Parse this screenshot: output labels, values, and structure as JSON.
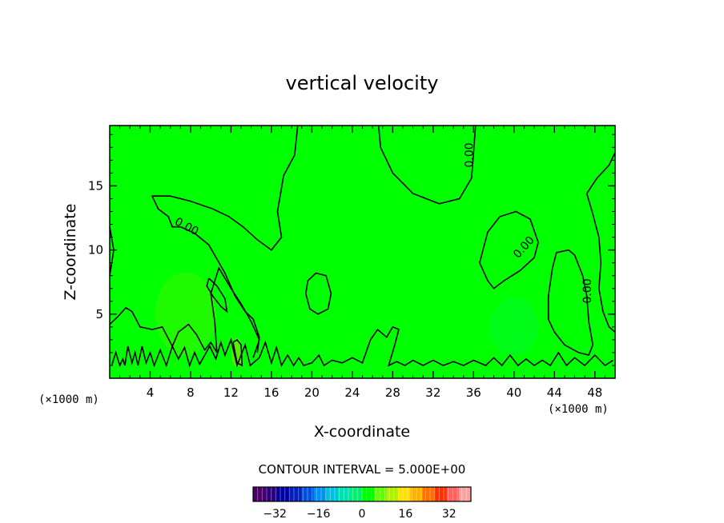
{
  "chart_data": {
    "type": "contour",
    "title": "vertical velocity",
    "xlabel": "X-coordinate",
    "ylabel": "Z-coordinate",
    "x_unit": "(×1000 m)",
    "y_unit": "(×1000 m)",
    "xlim": [
      0,
      50
    ],
    "ylim": [
      0,
      19.7
    ],
    "xticks": [
      4,
      8,
      12,
      16,
      20,
      24,
      28,
      32,
      36,
      40,
      44,
      48
    ],
    "yticks": [
      5,
      10,
      15
    ],
    "contour_interval_text": "CONTOUR INTERVAL = 5.000E+00",
    "contour_label": "0.00",
    "colorbar": {
      "min": -40,
      "max": 40,
      "ticks": [
        -32,
        -16,
        0,
        16,
        32
      ],
      "colors": [
        "#4b0066",
        "#2a0080",
        "#0000a0",
        "#0020c0",
        "#0050e0",
        "#0090f0",
        "#00c0e0",
        "#00e0b0",
        "#00f070",
        "#00ff00",
        "#60ff00",
        "#b0f000",
        "#ffe000",
        "#ffb000",
        "#ff7000",
        "#ff3000",
        "#ff6060",
        "#ffa0a0"
      ]
    },
    "field_color": "#00ff00",
    "contours": [
      [
        [
          0.2,
          1.0
        ],
        [
          0.6,
          2.0
        ],
        [
          1.0,
          1.0
        ],
        [
          1.3,
          1.5
        ],
        [
          1.5,
          1.0
        ],
        [
          1.8,
          2.5
        ],
        [
          2.2,
          1.2
        ],
        [
          2.5,
          2.0
        ],
        [
          2.8,
          1.0
        ],
        [
          3.2,
          2.5
        ],
        [
          3.6,
          1.2
        ],
        [
          4.0,
          2.0
        ],
        [
          4.4,
          1.0
        ],
        [
          5.0,
          2.2
        ],
        [
          5.6,
          1.0
        ],
        [
          6.2,
          2.5
        ],
        [
          6.8,
          1.5
        ],
        [
          7.4,
          2.4
        ],
        [
          7.9,
          1.0
        ],
        [
          8.4,
          2.0
        ],
        [
          8.9,
          1.1
        ],
        [
          9.4,
          1.8
        ],
        [
          9.9,
          2.5
        ],
        [
          10.5,
          1.5
        ],
        [
          11.0,
          2.8
        ],
        [
          11.4,
          1.8
        ],
        [
          12.0,
          3.0
        ],
        [
          12.6,
          1.0
        ],
        [
          13.4,
          2.6
        ],
        [
          13.9,
          1.0
        ],
        [
          14.8,
          1.6
        ],
        [
          15.4,
          2.8
        ],
        [
          16.0,
          1.2
        ],
        [
          16.5,
          2.4
        ],
        [
          17.0,
          1.0
        ],
        [
          17.6,
          1.8
        ],
        [
          18.2,
          1.0
        ],
        [
          18.7,
          1.6
        ],
        [
          19.2,
          1.0
        ],
        [
          20.0,
          1.2
        ],
        [
          20.7,
          1.8
        ],
        [
          21.2,
          1.0
        ],
        [
          22.0,
          1.4
        ],
        [
          23.0,
          1.2
        ],
        [
          24.0,
          1.6
        ],
        [
          25.0,
          1.2
        ],
        [
          25.8,
          3.0
        ],
        [
          26.5,
          3.8
        ],
        [
          27.4,
          3.2
        ],
        [
          28.0,
          4.0
        ],
        [
          28.6,
          3.8
        ],
        [
          28.2,
          2.6
        ],
        [
          27.6,
          1.0
        ],
        [
          28.4,
          1.3
        ],
        [
          29.2,
          1.0
        ],
        [
          30.0,
          1.4
        ],
        [
          31.0,
          1.0
        ],
        [
          32.0,
          1.4
        ],
        [
          33.0,
          1.0
        ],
        [
          34.0,
          1.3
        ],
        [
          35.0,
          1.0
        ],
        [
          36.0,
          1.4
        ],
        [
          37.2,
          1.0
        ],
        [
          38.0,
          1.6
        ],
        [
          38.8,
          1.0
        ],
        [
          39.6,
          1.8
        ],
        [
          40.4,
          1.0
        ],
        [
          41.2,
          1.5
        ],
        [
          42.0,
          1.0
        ],
        [
          42.8,
          1.4
        ],
        [
          43.6,
          1.0
        ],
        [
          44.4,
          2.0
        ],
        [
          45.2,
          1.0
        ],
        [
          46.0,
          1.6
        ],
        [
          47.0,
          1.0
        ],
        [
          48.0,
          1.8
        ],
        [
          49.0,
          1.0
        ],
        [
          49.8,
          1.4
        ]
      ],
      [
        [
          0.0,
          4.2
        ],
        [
          0.8,
          4.8
        ],
        [
          1.6,
          5.5
        ],
        [
          2.2,
          5.2
        ],
        [
          3.0,
          4.0
        ],
        [
          4.2,
          3.8
        ],
        [
          5.2,
          4.0
        ],
        [
          6.2,
          2.5
        ],
        [
          6.8,
          3.6
        ],
        [
          7.8,
          4.2
        ],
        [
          8.6,
          3.4
        ],
        [
          9.4,
          2.2
        ],
        [
          10.0,
          2.8
        ],
        [
          10.6,
          2.0
        ],
        [
          10.4,
          4.4
        ],
        [
          10.0,
          6.6
        ],
        [
          10.8,
          8.6
        ],
        [
          12.0,
          7.0
        ],
        [
          13.0,
          5.8
        ],
        [
          14.0,
          4.4
        ],
        [
          14.8,
          3.0
        ],
        [
          14.2,
          1.6
        ]
      ],
      [
        [
          0.0,
          8.0
        ],
        [
          0.4,
          10.0
        ],
        [
          0.0,
          11.8
        ]
      ],
      [
        [
          18.6,
          19.7
        ],
        [
          18.3,
          17.4
        ],
        [
          17.2,
          15.8
        ],
        [
          16.6,
          13.0
        ],
        [
          17.0,
          11.0
        ],
        [
          16.0,
          10.0
        ],
        [
          14.6,
          10.8
        ],
        [
          13.2,
          11.8
        ],
        [
          11.8,
          12.6
        ],
        [
          10.2,
          13.2
        ],
        [
          8.0,
          13.8
        ],
        [
          6.0,
          14.2
        ],
        [
          4.2,
          14.2
        ],
        [
          4.8,
          13.2
        ],
        [
          5.8,
          12.6
        ],
        [
          6.2,
          11.8
        ],
        [
          7.0,
          11.8
        ],
        [
          8.4,
          11.3
        ],
        [
          9.8,
          10.4
        ],
        [
          11.4,
          8.2
        ],
        [
          12.4,
          6.4
        ],
        [
          13.4,
          5.2
        ],
        [
          14.2,
          4.6
        ],
        [
          14.8,
          3.2
        ],
        [
          14.6,
          2.0
        ]
      ],
      [
        [
          9.8,
          7.8
        ],
        [
          10.6,
          7.2
        ],
        [
          11.4,
          6.2
        ],
        [
          11.6,
          5.2
        ],
        [
          11.0,
          5.6
        ],
        [
          10.2,
          6.4
        ],
        [
          9.6,
          7.2
        ],
        [
          9.8,
          7.8
        ]
      ],
      [
        [
          12.2,
          2.8
        ],
        [
          12.6,
          1.2
        ],
        [
          13.1,
          1.0
        ],
        [
          13.0,
          2.6
        ],
        [
          12.6,
          3.0
        ],
        [
          12.2,
          2.8
        ]
      ],
      [
        [
          19.6,
          7.6
        ],
        [
          20.4,
          8.2
        ],
        [
          21.4,
          8.0
        ],
        [
          21.9,
          6.6
        ],
        [
          21.6,
          5.4
        ],
        [
          20.6,
          5.0
        ],
        [
          19.8,
          5.4
        ],
        [
          19.4,
          6.6
        ],
        [
          19.6,
          7.6
        ]
      ],
      [
        [
          26.6,
          19.7
        ],
        [
          26.8,
          18.0
        ],
        [
          28.0,
          16.0
        ],
        [
          30.0,
          14.4
        ],
        [
          32.6,
          13.6
        ],
        [
          34.6,
          14.0
        ],
        [
          35.8,
          15.6
        ],
        [
          36.0,
          17.6
        ],
        [
          36.2,
          19.7
        ]
      ],
      [
        [
          36.6,
          9.0
        ],
        [
          37.4,
          11.4
        ],
        [
          38.6,
          12.6
        ],
        [
          40.2,
          13.0
        ],
        [
          41.6,
          12.4
        ],
        [
          42.4,
          10.6
        ],
        [
          42.0,
          9.4
        ],
        [
          40.6,
          8.4
        ],
        [
          39.0,
          7.6
        ],
        [
          38.0,
          7.0
        ],
        [
          37.4,
          7.6
        ],
        [
          36.6,
          9.0
        ]
      ],
      [
        [
          43.8,
          8.6
        ],
        [
          44.2,
          9.8
        ],
        [
          45.4,
          10.0
        ],
        [
          46.0,
          9.6
        ],
        [
          46.8,
          8.0
        ],
        [
          47.2,
          6.4
        ],
        [
          47.4,
          4.4
        ],
        [
          47.8,
          2.6
        ],
        [
          47.4,
          1.8
        ],
        [
          46.4,
          2.0
        ],
        [
          45.0,
          2.6
        ],
        [
          44.0,
          3.6
        ],
        [
          43.4,
          4.6
        ],
        [
          43.4,
          6.4
        ],
        [
          43.8,
          8.6
        ]
      ],
      [
        [
          47.2,
          14.4
        ],
        [
          48.2,
          15.6
        ],
        [
          49.4,
          16.6
        ],
        [
          50.0,
          17.6
        ]
      ],
      [
        [
          47.2,
          14.4
        ],
        [
          47.8,
          12.8
        ],
        [
          48.4,
          11.0
        ],
        [
          48.6,
          9.0
        ],
        [
          48.4,
          7.0
        ],
        [
          48.8,
          5.2
        ],
        [
          49.4,
          4.0
        ],
        [
          50.0,
          3.6
        ]
      ]
    ]
  }
}
